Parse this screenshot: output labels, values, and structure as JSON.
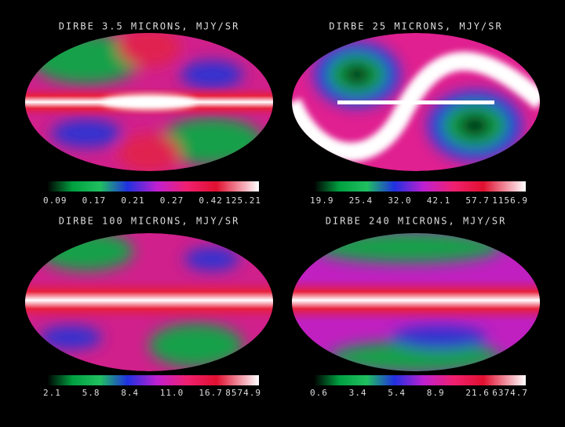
{
  "panels": [
    {
      "title": "DIRBE 3.5 MICRONS, MJY/SR",
      "scale_labels": [
        "0.09",
        "0.17",
        "0.21",
        "0.27",
        "0.42",
        "125.21"
      ]
    },
    {
      "title": "DIRBE 25 MICRONS, MJY/SR",
      "scale_labels": [
        "19.9",
        "25.4",
        "32.0",
        "42.1",
        "57.7",
        "1156.9"
      ]
    },
    {
      "title": "DIRBE 100 MICRONS, MJY/SR",
      "scale_labels": [
        "2.1",
        "5.8",
        "8.4",
        "11.0",
        "16.7",
        "8574.9"
      ]
    },
    {
      "title": "DIRBE 240 MICRONS, MJY/SR",
      "scale_labels": [
        "0.6",
        "3.4",
        "5.4",
        "8.9",
        "21.6",
        "6374.7"
      ]
    }
  ]
}
